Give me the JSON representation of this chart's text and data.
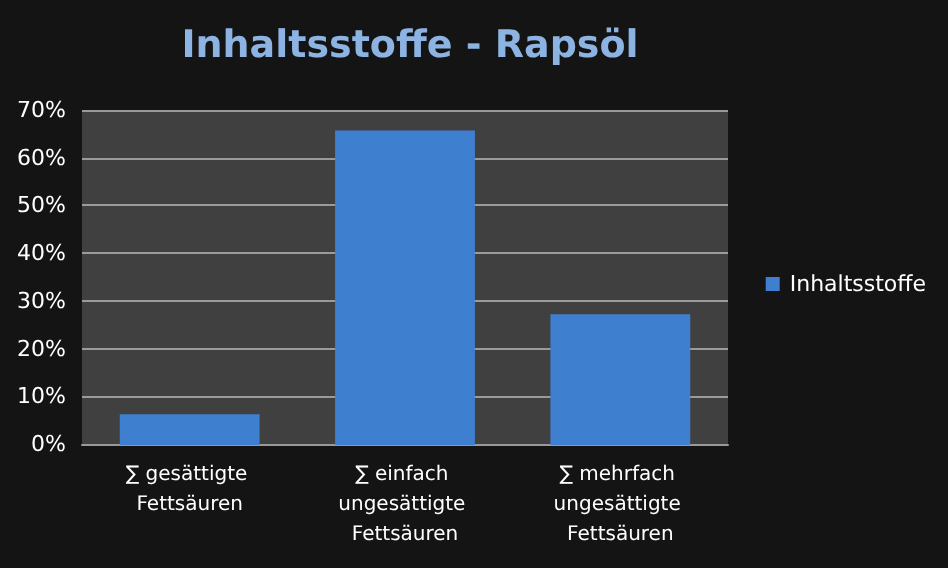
{
  "chart_data": {
    "type": "bar",
    "title": "Inhaltsstoffe - Rapsöl",
    "categories": [
      "∑ gesättigte Fettsäuren",
      "∑ einfach ungesättigte Fettsäuren",
      "∑ mehrfach ungesättigte Fettsäuren"
    ],
    "series": [
      {
        "name": "Inhaltsstoffe",
        "color": "#3f7fd0",
        "values": [
          6,
          65.5,
          27
        ]
      }
    ],
    "ylim": [
      0,
      70
    ],
    "yticks": [
      {
        "value": 0,
        "label": "0%"
      },
      {
        "value": 10,
        "label": "10%"
      },
      {
        "value": 20,
        "label": "20%"
      },
      {
        "value": 30,
        "label": "30%"
      },
      {
        "value": 40,
        "label": "40%"
      },
      {
        "value": 50,
        "label": "50%"
      },
      {
        "value": 60,
        "label": "60%"
      },
      {
        "value": 70,
        "label": "70%"
      }
    ],
    "grid": "y",
    "legend": "right"
  }
}
